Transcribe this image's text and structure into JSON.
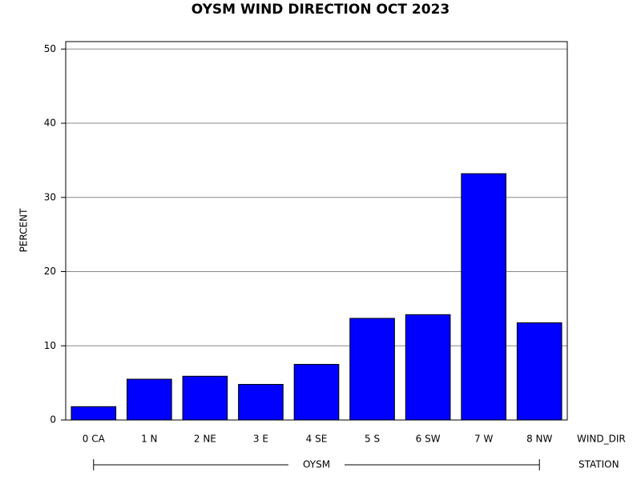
{
  "chart_data": {
    "type": "bar",
    "title": "OYSM WIND DIRECTION OCT 2023",
    "y_label": "PERCENT",
    "x_label": "WIND_DIR",
    "group_label": "STATION",
    "group": "OYSM",
    "categories": [
      "0 CA",
      "1 N",
      "2 NE",
      "3 E",
      "4 SE",
      "5 S",
      "6 SW",
      "7 W",
      "8 NW"
    ],
    "values": [
      1.8,
      5.5,
      5.9,
      4.8,
      7.5,
      13.7,
      14.2,
      33.2,
      13.1
    ],
    "color": "#0000ff",
    "ylim": [
      0,
      51
    ],
    "yticks": [
      0,
      10,
      20,
      30,
      40,
      50
    ],
    "grid": true
  }
}
